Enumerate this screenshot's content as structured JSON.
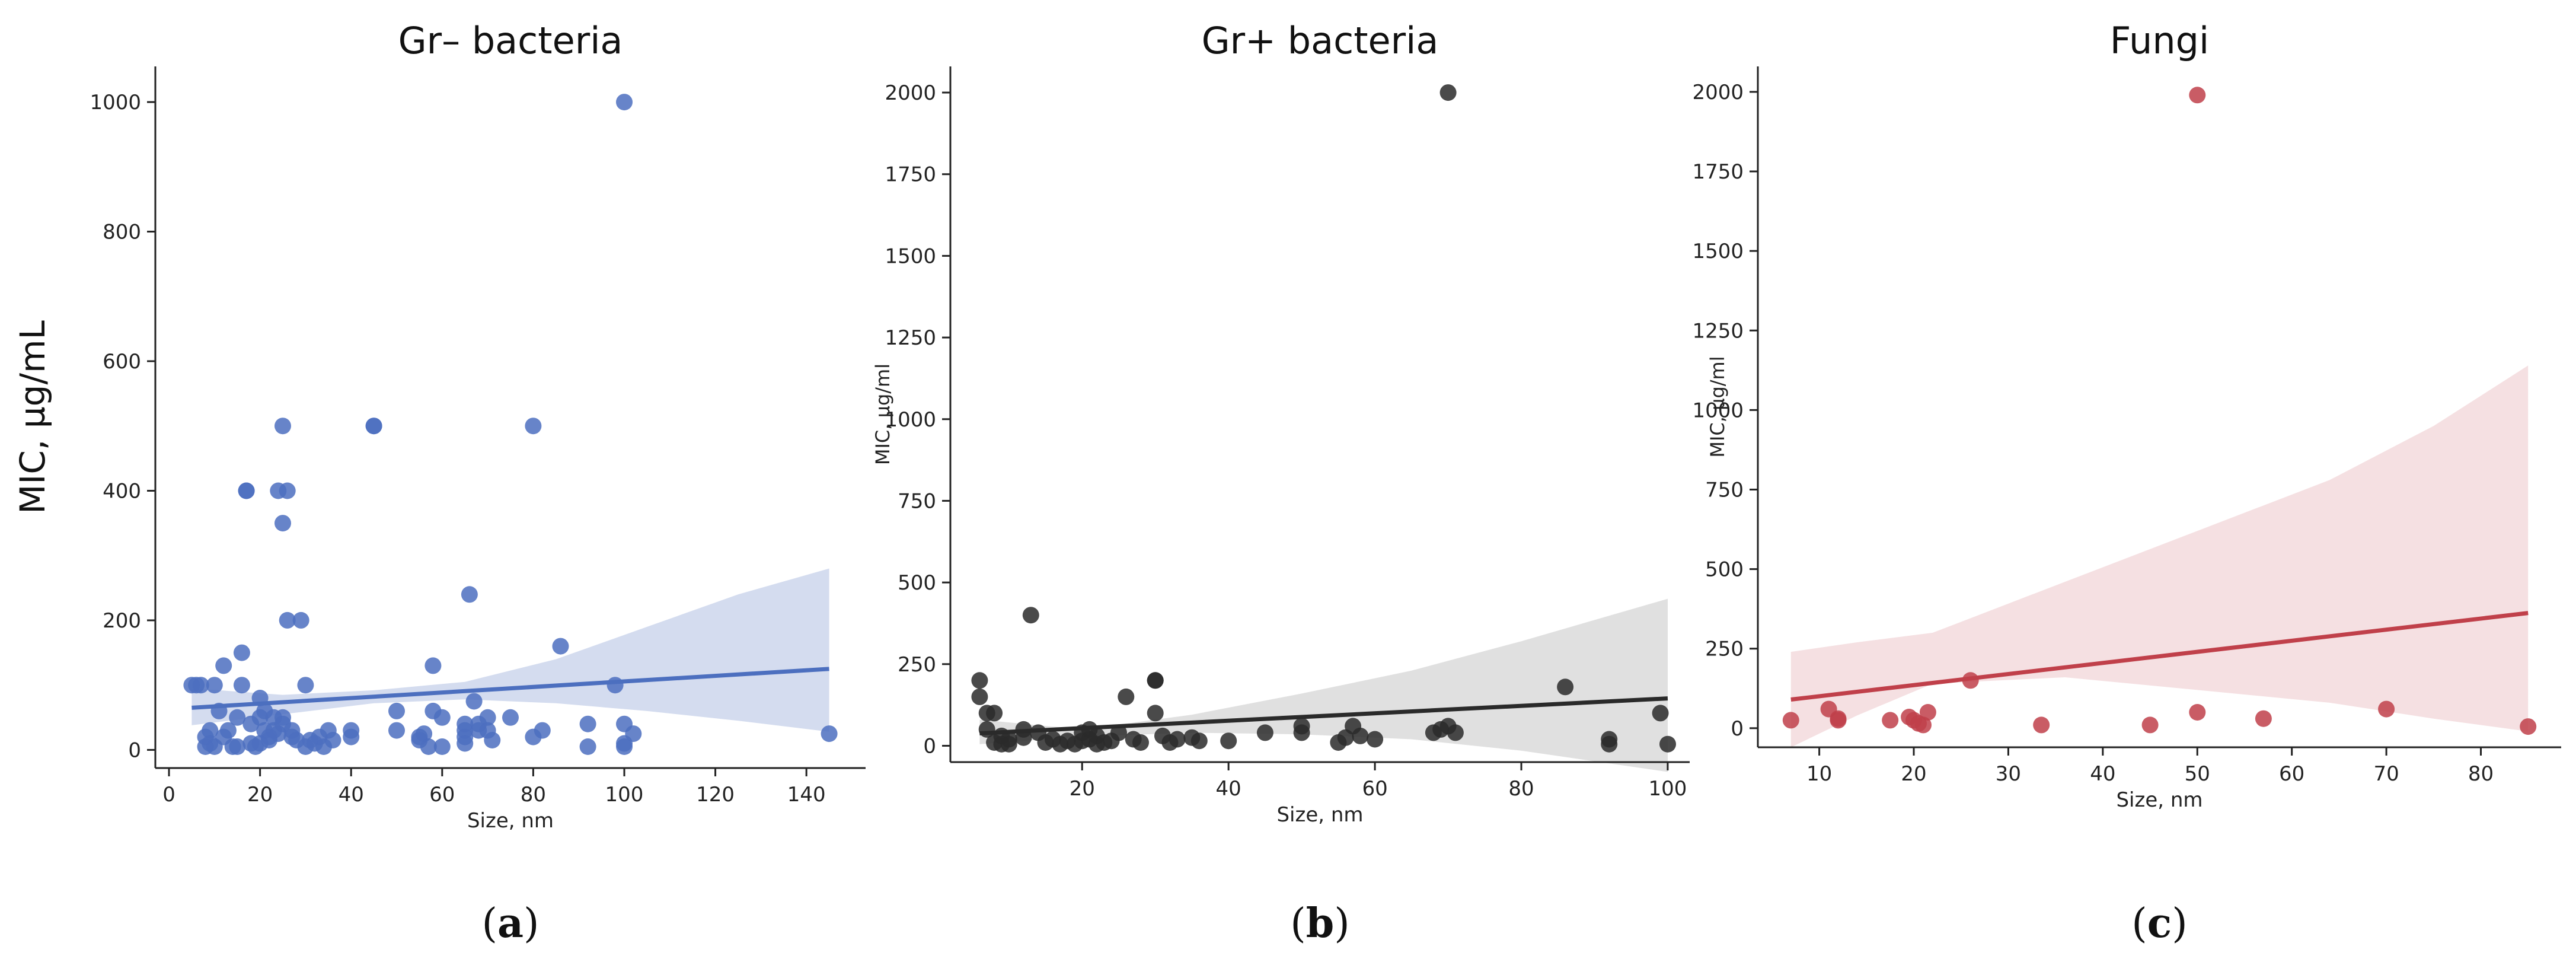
{
  "chart_data": [
    {
      "type": "scatter",
      "title": "Gr– bacteria",
      "xlabel": "Size, nm",
      "ylabel": "MIC, µg/mL",
      "panel_label_open": "(",
      "panel_label_letter": "a",
      "panel_label_close": ")",
      "color": "#4C6FBF",
      "band_color": "#C5D0EA",
      "xlim": [
        -3,
        153
      ],
      "ylim": [
        -28,
        1055
      ],
      "xticks": [
        0,
        20,
        40,
        60,
        80,
        100,
        120,
        140
      ],
      "yticks": [
        0,
        200,
        400,
        600,
        800,
        1000
      ],
      "x": [
        5,
        6,
        7,
        8,
        8,
        9,
        9,
        10,
        10,
        11,
        12,
        12,
        13,
        14,
        15,
        15,
        16,
        16,
        17,
        17,
        18,
        18,
        19,
        20,
        20,
        20,
        21,
        21,
        22,
        22,
        23,
        23,
        24,
        24,
        25,
        25,
        25,
        25,
        26,
        26,
        27,
        27,
        28,
        29,
        30,
        30,
        31,
        32,
        33,
        34,
        35,
        36,
        40,
        40,
        45,
        45,
        50,
        50,
        55,
        55,
        56,
        57,
        58,
        58,
        60,
        60,
        65,
        65,
        65,
        65,
        66,
        67,
        68,
        68,
        70,
        70,
        71,
        75,
        80,
        80,
        82,
        86,
        92,
        92,
        98,
        100,
        100,
        100,
        100,
        102,
        145
      ],
      "y": [
        100,
        100,
        100,
        20,
        5,
        30,
        10,
        100,
        5,
        60,
        130,
        20,
        30,
        5,
        50,
        5,
        150,
        100,
        400,
        400,
        10,
        40,
        5,
        80,
        10,
        50,
        60,
        30,
        20,
        15,
        30,
        50,
        400,
        25,
        500,
        350,
        50,
        40,
        200,
        400,
        30,
        20,
        15,
        200,
        100,
        5,
        15,
        10,
        20,
        5,
        30,
        15,
        20,
        30,
        500,
        500,
        30,
        60,
        20,
        15,
        25,
        5,
        130,
        60,
        50,
        5,
        30,
        20,
        40,
        10,
        240,
        75,
        30,
        40,
        50,
        30,
        15,
        50,
        500,
        20,
        30,
        160,
        40,
        5,
        100,
        1000,
        40,
        10,
        5,
        25,
        25
      ],
      "fit": {
        "x0": 5,
        "y0": 65,
        "x1": 145,
        "y1": 125
      },
      "band": {
        "upper": [
          95,
          85,
          92,
          105,
          140,
          190,
          240,
          280
        ],
        "lower": [
          38,
          55,
          72,
          78,
          72,
          60,
          45,
          28
        ],
        "xs": [
          5,
          25,
          45,
          65,
          85,
          105,
          125,
          145
        ]
      }
    },
    {
      "type": "scatter",
      "title": "Gr+ bacteria",
      "xlabel": "Size, nm",
      "ylabel": "MIC, µg/ml",
      "panel_label_open": "(",
      "panel_label_letter": "b",
      "panel_label_close": ")",
      "color": "#2A2A2A",
      "band_color": "#D6D6D6",
      "xlim": [
        2,
        103
      ],
      "ylim": [
        -50,
        2080
      ],
      "xticks": [
        20,
        40,
        60,
        80,
        100
      ],
      "yticks": [
        0,
        250,
        500,
        750,
        1000,
        1250,
        1500,
        1750,
        2000
      ],
      "x": [
        6,
        6,
        7,
        7,
        8,
        8,
        9,
        9,
        10,
        10,
        12,
        12,
        13,
        14,
        15,
        16,
        17,
        18,
        19,
        20,
        20,
        21,
        21,
        22,
        22,
        23,
        24,
        25,
        26,
        27,
        28,
        30,
        30,
        30,
        31,
        32,
        33,
        35,
        36,
        40,
        45,
        50,
        50,
        55,
        56,
        57,
        58,
        60,
        68,
        69,
        70,
        70,
        71,
        86,
        92,
        92,
        99,
        100
      ],
      "y": [
        200,
        150,
        100,
        50,
        100,
        10,
        30,
        5,
        20,
        5,
        50,
        25,
        400,
        40,
        10,
        20,
        5,
        15,
        5,
        40,
        15,
        50,
        20,
        5,
        30,
        10,
        15,
        40,
        150,
        20,
        10,
        200,
        200,
        100,
        30,
        10,
        20,
        25,
        15,
        15,
        40,
        60,
        40,
        10,
        25,
        60,
        30,
        20,
        40,
        50,
        2000,
        60,
        40,
        180,
        20,
        5,
        100,
        5
      ],
      "fit": {
        "x0": 6,
        "y0": 38,
        "x1": 100,
        "y1": 145
      },
      "band": {
        "upper": [
          80,
          50,
          95,
          160,
          230,
          320,
          450
        ],
        "lower": [
          5,
          28,
          40,
          35,
          20,
          -15,
          -80
        ],
        "xs": [
          6,
          20,
          35,
          50,
          65,
          80,
          100
        ]
      }
    },
    {
      "type": "scatter",
      "title": "Fungi",
      "xlabel": "Size, nm",
      "ylabel": "MIC, µg/ml",
      "panel_label_open": "(",
      "panel_label_letter": "c",
      "panel_label_close": ")",
      "color": "#C0404A",
      "band_color": "#F2D5D8",
      "xlim": [
        3.5,
        88.5
      ],
      "ylim": [
        -60,
        2080
      ],
      "xticks": [
        10,
        20,
        30,
        40,
        50,
        60,
        70,
        80
      ],
      "yticks": [
        0,
        250,
        500,
        750,
        1000,
        1250,
        1500,
        1750,
        2000
      ],
      "x": [
        7,
        11,
        12,
        12,
        17.5,
        19.5,
        20,
        20.5,
        21,
        21.5,
        26,
        33.5,
        45,
        50,
        50,
        57,
        70,
        85
      ],
      "y": [
        25,
        60,
        25,
        30,
        25,
        35,
        25,
        15,
        10,
        50,
        150,
        10,
        10,
        1990,
        50,
        30,
        60,
        5
      ],
      "fit": {
        "x0": 7,
        "y0": 90,
        "x1": 85,
        "y1": 362
      },
      "band": {
        "upper": [
          240,
          270,
          300,
          460,
          620,
          780,
          950,
          1140
        ],
        "lower": [
          -60,
          40,
          140,
          160,
          120,
          80,
          30,
          -10
        ],
        "xs": [
          7,
          14,
          22,
          36,
          50,
          64,
          75,
          85
        ]
      }
    }
  ]
}
